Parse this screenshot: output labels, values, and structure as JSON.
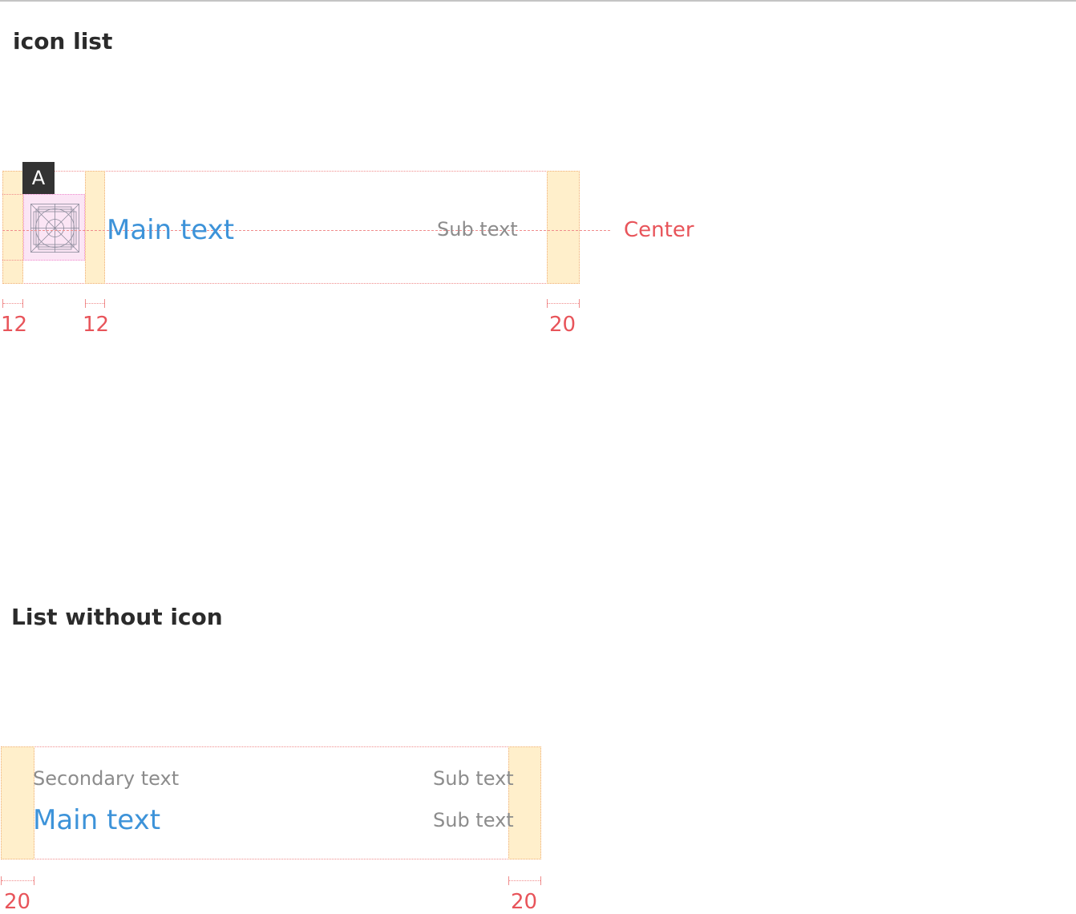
{
  "section1": {
    "title": "icon list",
    "marker_label": "A",
    "main_text": "Main text",
    "sub_text": "Sub text",
    "center_label": "Center",
    "dimensions": [
      "12",
      "12",
      "20"
    ]
  },
  "section2": {
    "title": "List without icon",
    "secondary_text": "Secondary text",
    "main_text": "Main text",
    "sub_text_1": "Sub text",
    "sub_text_2": "Sub text",
    "dimensions": [
      "20",
      "20"
    ]
  },
  "colors": {
    "accent_blue": "#3d93d9",
    "annotation_red": "#e8545a",
    "padding_fill": "#ffefcb",
    "icon_fill": "#fbe5f5"
  },
  "icons": [
    "icon-grid-placeholder-icon"
  ]
}
